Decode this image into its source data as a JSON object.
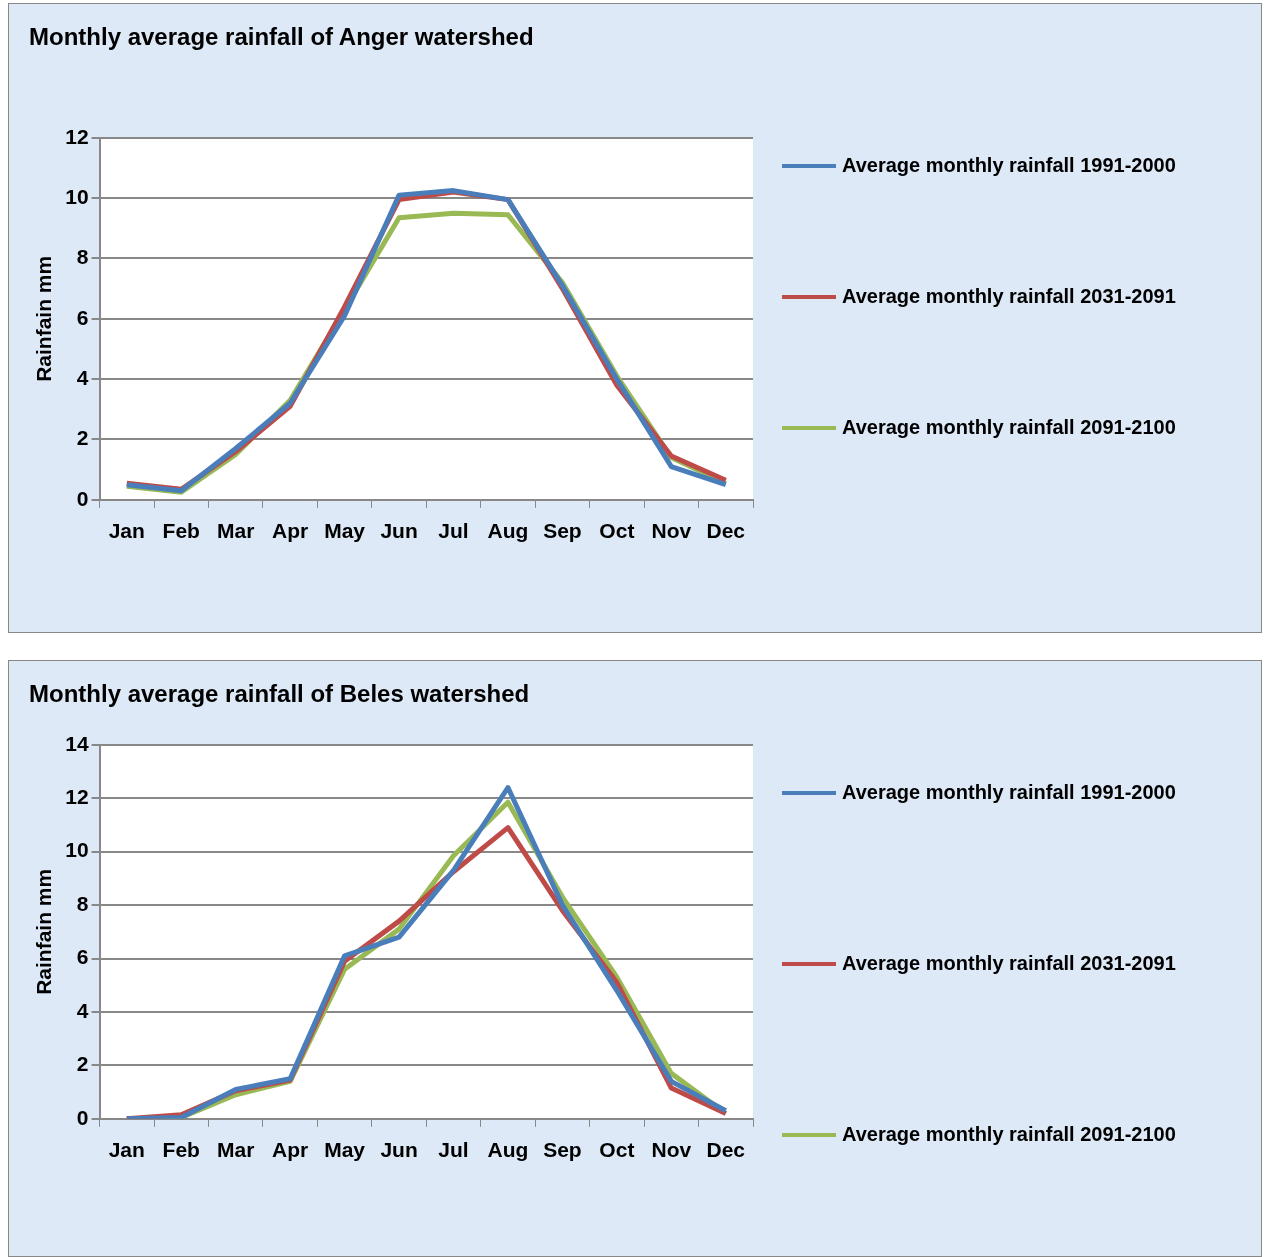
{
  "chart_data": [
    {
      "type": "line",
      "title": "Monthly average rainfall of Anger watershed",
      "ylabel": "Rainfain mm",
      "categories": [
        "Jan",
        "Feb",
        "Mar",
        "Apr",
        "May",
        "Jun",
        "Jul",
        "Aug",
        "Sep",
        "Oct",
        "Nov",
        "Dec"
      ],
      "series": [
        {
          "name": "Average monthly rainfall 1991-2000",
          "color": "#4a7ebb",
          "values": [
            0.5,
            0.3,
            1.7,
            3.2,
            6.1,
            10.1,
            10.25,
            9.95,
            7.1,
            4.0,
            1.1,
            0.5
          ]
        },
        {
          "name": "Average monthly rainfall 2031-2091",
          "color": "#be4b48",
          "values": [
            0.55,
            0.35,
            1.6,
            3.1,
            6.4,
            9.95,
            10.2,
            9.95,
            7.0,
            3.8,
            1.45,
            0.65
          ]
        },
        {
          "name": "Average monthly rainfall 2091-2100",
          "color": "#98b954",
          "values": [
            0.45,
            0.25,
            1.5,
            3.3,
            6.3,
            9.35,
            9.5,
            9.45,
            7.2,
            4.1,
            1.4,
            0.55
          ]
        }
      ],
      "ylim": [
        0,
        12
      ],
      "yticks": [
        0,
        2,
        4,
        6,
        8,
        10,
        12
      ],
      "grid": "y",
      "legend": "right",
      "marker": "none",
      "line_style": "solid"
    },
    {
      "type": "line",
      "title": "Monthly average rainfall of Beles watershed",
      "ylabel": "Rainfain mm",
      "categories": [
        "Jan",
        "Feb",
        "Mar",
        "Apr",
        "May",
        "Jun",
        "Jul",
        "Aug",
        "Sep",
        "Oct",
        "Nov",
        "Dec"
      ],
      "series": [
        {
          "name": "Average monthly rainfall 1991-2000",
          "color": "#4a7ebb",
          "values": [
            0,
            0.05,
            1.1,
            1.5,
            6.1,
            6.8,
            9.3,
            12.4,
            8.0,
            4.8,
            1.4,
            0.3
          ]
        },
        {
          "name": "Average monthly rainfall 2031-2091",
          "color": "#be4b48",
          "values": [
            0,
            0.15,
            1.05,
            1.45,
            5.9,
            7.4,
            9.25,
            10.9,
            7.8,
            5.1,
            1.15,
            0.2
          ]
        },
        {
          "name": "Average monthly rainfall 2091-2100",
          "color": "#98b954",
          "values": [
            0,
            0.05,
            0.9,
            1.4,
            5.6,
            7.1,
            9.85,
            11.85,
            8.3,
            5.3,
            1.7,
            0.2
          ]
        }
      ],
      "ylim": [
        0,
        14
      ],
      "yticks": [
        0,
        2,
        4,
        6,
        8,
        10,
        12,
        14
      ],
      "grid": "y",
      "legend": "right",
      "marker": "none",
      "line_style": "solid"
    }
  ]
}
